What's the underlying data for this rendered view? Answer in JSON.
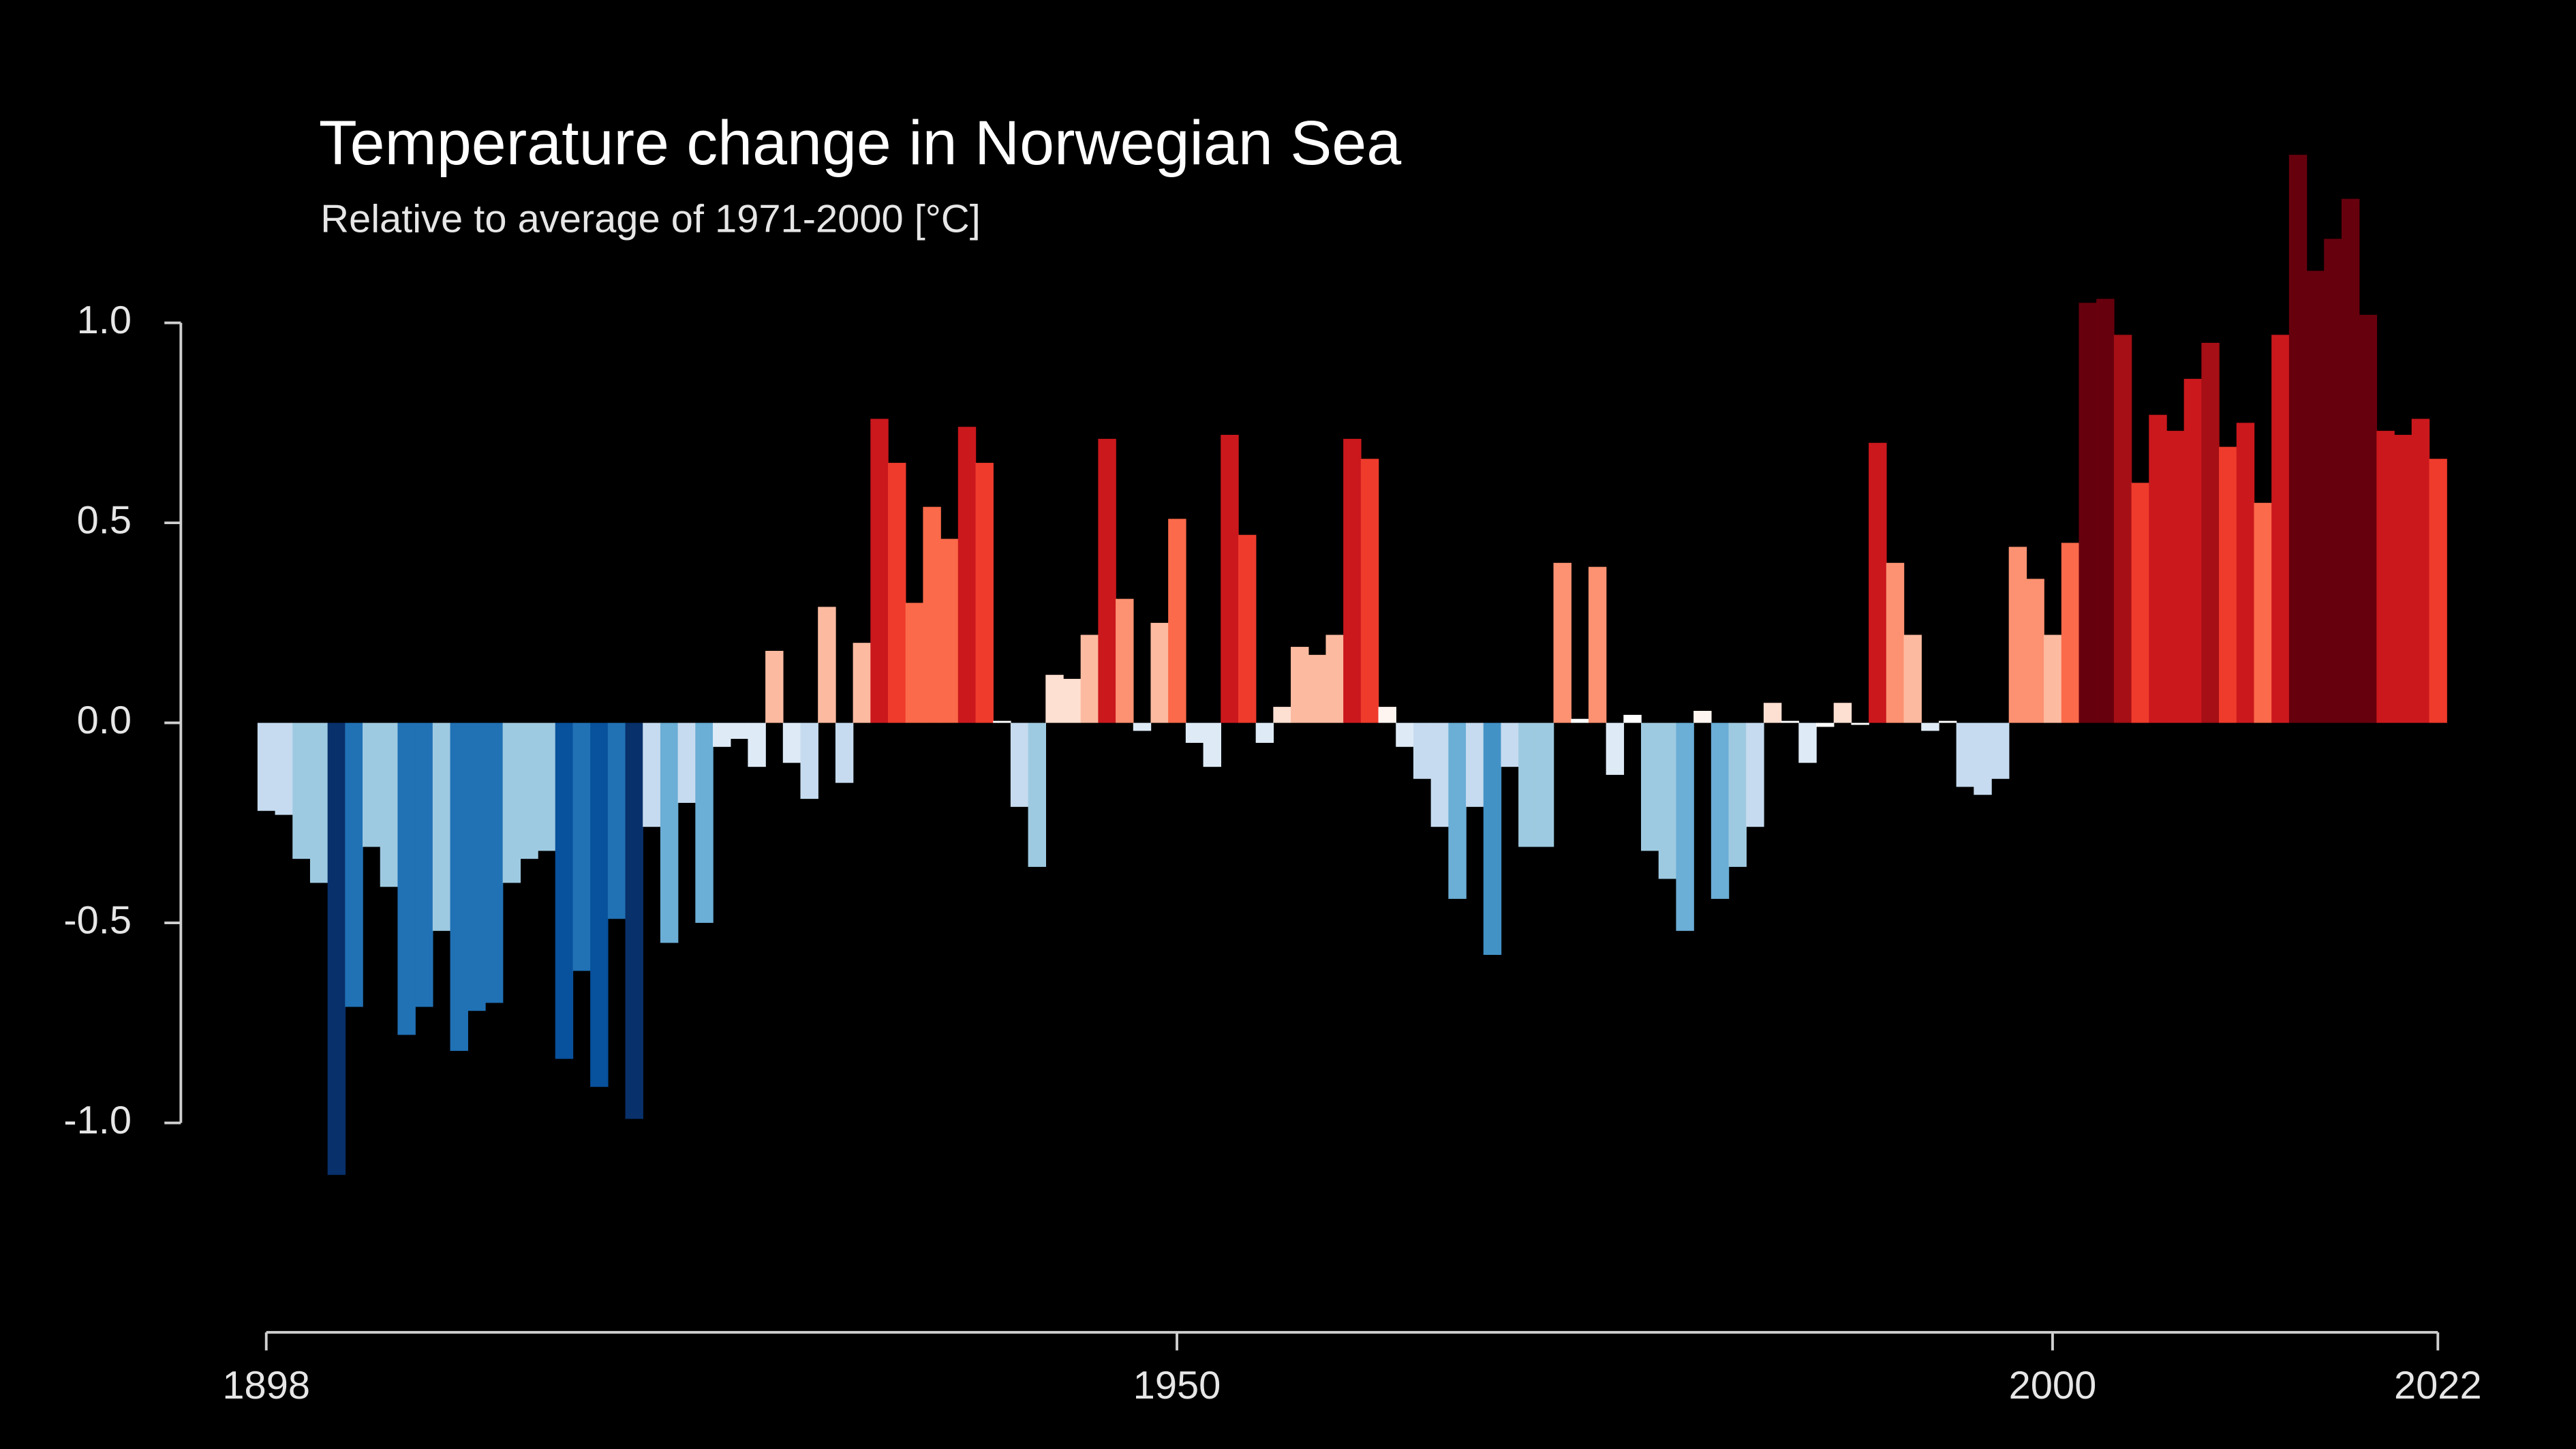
{
  "chart_data": {
    "type": "bar",
    "title": "Temperature change in Norwegian Sea",
    "subtitle": "Relative to average of 1971-2000  [°C]",
    "x": [
      1898,
      1899,
      1900,
      1901,
      1902,
      1903,
      1904,
      1905,
      1906,
      1907,
      1908,
      1909,
      1910,
      1911,
      1912,
      1913,
      1914,
      1915,
      1916,
      1917,
      1918,
      1919,
      1920,
      1921,
      1922,
      1923,
      1924,
      1925,
      1926,
      1927,
      1928,
      1929,
      1930,
      1931,
      1932,
      1933,
      1934,
      1935,
      1936,
      1937,
      1938,
      1939,
      1940,
      1941,
      1942,
      1943,
      1944,
      1945,
      1946,
      1947,
      1948,
      1949,
      1950,
      1951,
      1952,
      1953,
      1954,
      1955,
      1956,
      1957,
      1958,
      1959,
      1960,
      1961,
      1962,
      1963,
      1964,
      1965,
      1966,
      1967,
      1968,
      1969,
      1970,
      1971,
      1972,
      1973,
      1974,
      1975,
      1976,
      1977,
      1978,
      1979,
      1980,
      1981,
      1982,
      1983,
      1984,
      1985,
      1986,
      1987,
      1988,
      1989,
      1990,
      1991,
      1992,
      1993,
      1994,
      1995,
      1996,
      1997,
      1998,
      1999,
      2000,
      2001,
      2002,
      2003,
      2004,
      2005,
      2006,
      2007,
      2008,
      2009,
      2010,
      2011,
      2012,
      2013,
      2014,
      2015,
      2016,
      2017,
      2018,
      2019,
      2020,
      2021,
      2022
    ],
    "values": [
      -0.22,
      -0.23,
      -0.34,
      -0.4,
      -1.13,
      -0.71,
      -0.31,
      -0.41,
      -0.78,
      -0.71,
      -0.52,
      -0.82,
      -0.72,
      -0.7,
      -0.4,
      -0.34,
      -0.32,
      -0.84,
      -0.62,
      -0.91,
      -0.49,
      -0.99,
      -0.26,
      -0.55,
      -0.2,
      -0.5,
      -0.06,
      -0.04,
      -0.11,
      0.18,
      -0.1,
      -0.19,
      0.29,
      -0.15,
      0.2,
      0.76,
      0.65,
      0.3,
      0.54,
      0.46,
      0.74,
      0.65,
      0.005,
      -0.21,
      -0.36,
      0.12,
      0.11,
      0.22,
      0.71,
      0.31,
      -0.02,
      0.25,
      0.51,
      -0.05,
      -0.11,
      0.72,
      0.47,
      -0.05,
      0.04,
      0.19,
      0.17,
      0.22,
      0.71,
      0.66,
      0.04,
      -0.06,
      -0.14,
      -0.26,
      -0.44,
      -0.21,
      -0.58,
      -0.11,
      -0.31,
      -0.31,
      0.4,
      0.01,
      0.39,
      -0.13,
      0.02,
      -0.32,
      -0.39,
      -0.52,
      0.03,
      -0.44,
      -0.36,
      -0.26,
      0.05,
      0.005,
      -0.1,
      -0.01,
      0.05,
      -0.005,
      0.7,
      0.4,
      0.22,
      -0.02,
      0.005,
      -0.16,
      -0.18,
      -0.14,
      0.44,
      0.36,
      0.22,
      0.45,
      1.05,
      1.06,
      0.97,
      0.6,
      0.77,
      0.73,
      0.86,
      0.95,
      0.69,
      0.75,
      0.55,
      0.97,
      1.42,
      1.13,
      1.21,
      1.31,
      1.02,
      0.73,
      0.72,
      0.76,
      0.66
    ],
    "colors": [
      "#c6dbef",
      "#c6dbef",
      "#9ecae1",
      "#9ecae1",
      "#08306b",
      "#2171b5",
      "#9ecae1",
      "#9ecae1",
      "#2171b5",
      "#2171b5",
      "#9ecae1",
      "#2171b5",
      "#2171b5",
      "#2171b5",
      "#9ecae1",
      "#9ecae1",
      "#9ecae1",
      "#08519c",
      "#2171b5",
      "#08519c",
      "#2171b5",
      "#08306b",
      "#c6dbef",
      "#6baed6",
      "#c6dbef",
      "#6baed6",
      "#deebf7",
      "#deebf7",
      "#deebf7",
      "#fcbba1",
      "#deebf7",
      "#c6dbef",
      "#fcbba1",
      "#c6dbef",
      "#fcbba1",
      "#cb181d",
      "#ef3b2c",
      "#fb6a4a",
      "#fb6a4a",
      "#fb6a4a",
      "#cb181d",
      "#ef3b2c",
      "#ffffff",
      "#c6dbef",
      "#9ecae1",
      "#fee0d2",
      "#fee0d2",
      "#fcbba1",
      "#cb181d",
      "#fc9272",
      "#deebf7",
      "#fcbba1",
      "#fb6a4a",
      "#deebf7",
      "#deebf7",
      "#cb181d",
      "#ef3b2c",
      "#deebf7",
      "#fee0d2",
      "#fcbba1",
      "#fcbba1",
      "#fcbba1",
      "#cb181d",
      "#ef3b2c",
      "#fff5f0",
      "#deebf7",
      "#c6dbef",
      "#c6dbef",
      "#6baed6",
      "#c6dbef",
      "#4292c6",
      "#c6dbef",
      "#9ecae1",
      "#9ecae1",
      "#fc9272",
      "#ffffff",
      "#fc9272",
      "#deebf7",
      "#ffffff",
      "#9ecae1",
      "#9ecae1",
      "#6baed6",
      "#fff5f0",
      "#6baed6",
      "#9ecae1",
      "#c6dbef",
      "#fee0d2",
      "#ffffff",
      "#deebf7",
      "#ffffff",
      "#fee0d2",
      "#ffffff",
      "#cb181d",
      "#fc9272",
      "#fcbba1",
      "#deebf7",
      "#ffffff",
      "#c6dbef",
      "#c6dbef",
      "#c6dbef",
      "#fc9272",
      "#fc9272",
      "#fcbba1",
      "#fb6a4a",
      "#67000d",
      "#67000d",
      "#a50f15",
      "#ef3b2c",
      "#cb181d",
      "#cb181d",
      "#cb181d",
      "#a50f15",
      "#ef3b2c",
      "#cb181d",
      "#fb6a4a",
      "#cb181d",
      "#67000d",
      "#67000d",
      "#67000d",
      "#67000d",
      "#67000d",
      "#cb181d",
      "#cb181d",
      "#cb181d",
      "#ef3b2c"
    ],
    "xlim": [
      1898,
      2022
    ],
    "xticks": [
      1898,
      1950,
      2000,
      2022
    ],
    "ylim": [
      -1.5,
      1.5
    ],
    "yticks": [
      {
        "value": 1,
        "label": "1.0"
      },
      0.5,
      {
        "value": 0,
        "label": "0.0"
      },
      -0.5,
      {
        "value": -1,
        "label": "-1.0"
      }
    ],
    "grid": false
  }
}
